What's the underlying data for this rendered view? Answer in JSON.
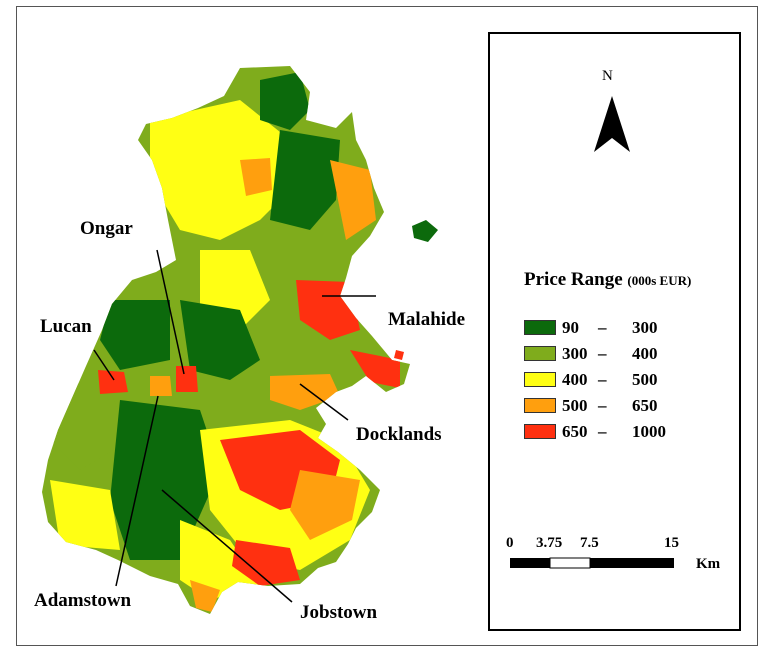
{
  "legend": {
    "title": "Price Range",
    "unit": "(000s EUR)",
    "classes": [
      {
        "low": "90",
        "high": "300",
        "color": "#0c6a0c"
      },
      {
        "low": "300",
        "high": "400",
        "color": "#7fac1c"
      },
      {
        "low": "400",
        "high": "500",
        "color": "#ffff14"
      },
      {
        "low": "500",
        "high": "650",
        "color": "#ff9f0e"
      },
      {
        "low": "650",
        "high": "1000",
        "color": "#ff3010"
      }
    ]
  },
  "north": {
    "label": "N"
  },
  "scale": {
    "ticks": [
      "0",
      "3.75",
      "7.5",
      "15"
    ],
    "unit": "Km"
  },
  "places": [
    "Ongar",
    "Lucan",
    "Malahide",
    "Docklands",
    "Adamstown",
    "Jobstown"
  ]
}
